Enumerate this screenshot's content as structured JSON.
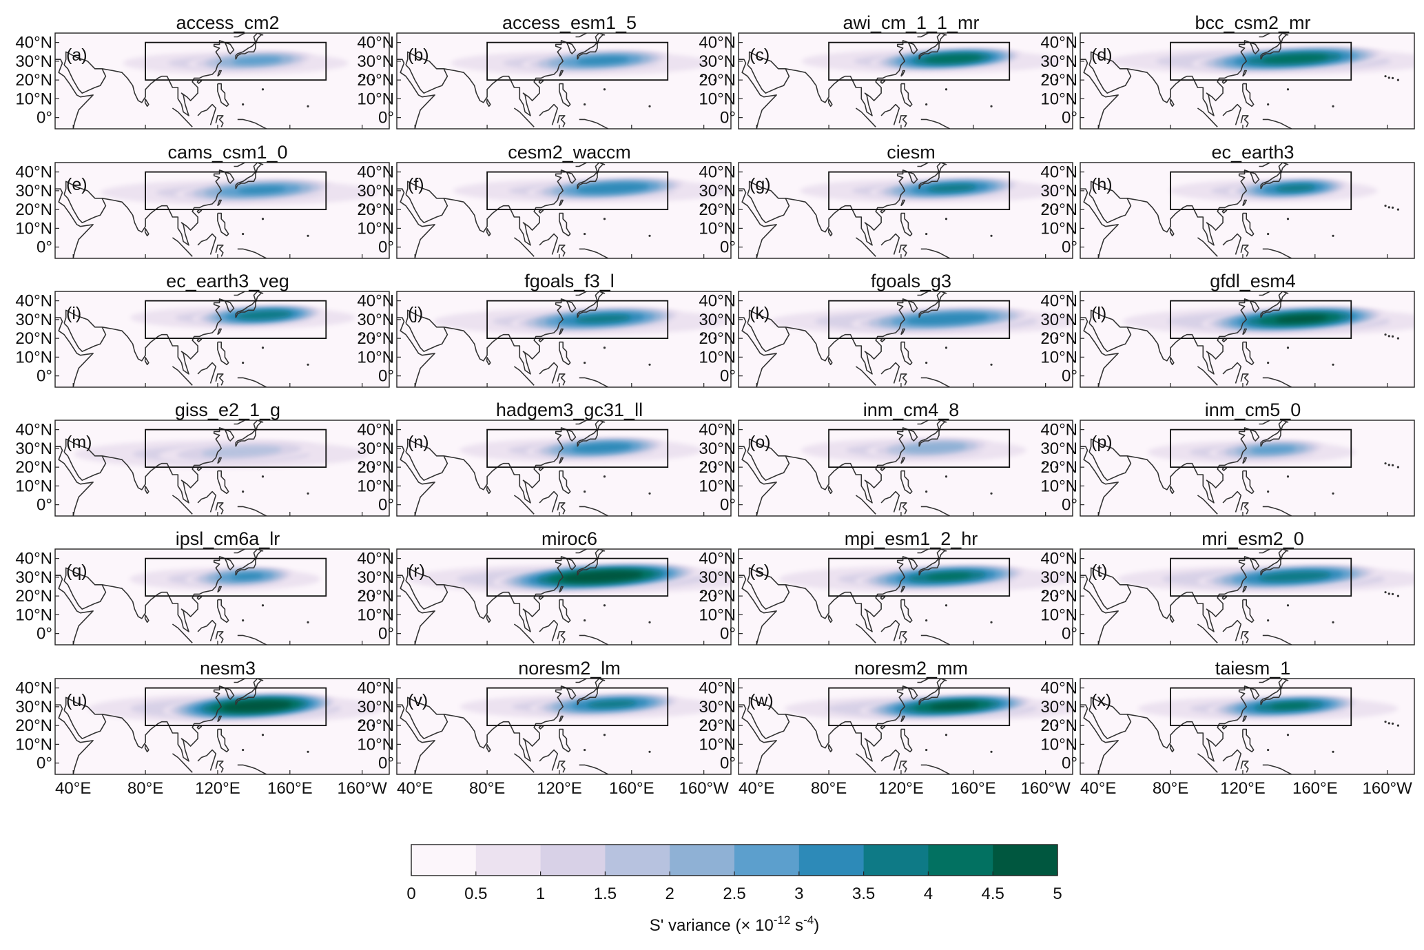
{
  "figure": {
    "panels": [
      {
        "letter": "(a)",
        "title": "access_cm2",
        "jet": {
          "lon": 138,
          "lat": 30,
          "peak": 2.6,
          "lonw": 26,
          "latw": 3.6,
          "weak": 1.0
        }
      },
      {
        "letter": "(b)",
        "title": "access_esm1_5",
        "jet": {
          "lon": 140,
          "lat": 30,
          "peak": 3.1,
          "lonw": 30,
          "latw": 3.8,
          "weak": 1.0
        }
      },
      {
        "letter": "(c)",
        "title": "awi_cm_1_1_mr",
        "jet": {
          "lon": 145,
          "lat": 31,
          "peak": 4.3,
          "lonw": 30,
          "latw": 3.8,
          "weak": 1.2
        }
      },
      {
        "letter": "(d)",
        "title": "bcc_csm2_mr",
        "jet": {
          "lon": 145,
          "lat": 31,
          "peak": 4.2,
          "lonw": 38,
          "latw": 4.2,
          "weak": 1.6
        }
      },
      {
        "letter": "(e)",
        "title": "cams_csm1_0",
        "jet": {
          "lon": 140,
          "lat": 30,
          "peak": 3.0,
          "lonw": 32,
          "latw": 4.0,
          "weak": 1.1
        }
      },
      {
        "letter": "(f)",
        "title": "cesm2_waccm",
        "jet": {
          "lon": 146,
          "lat": 31,
          "peak": 3.4,
          "lonw": 32,
          "latw": 3.8,
          "weak": 1.1
        }
      },
      {
        "letter": "(g)",
        "title": "ciesm",
        "jet": {
          "lon": 144,
          "lat": 31,
          "peak": 3.6,
          "lonw": 30,
          "latw": 3.8,
          "weak": 1.1
        }
      },
      {
        "letter": "(h)",
        "title": "ec_earth3",
        "jet": {
          "lon": 145,
          "lat": 31,
          "peak": 3.6,
          "lonw": 24,
          "latw": 3.6,
          "weak": 1.0
        }
      },
      {
        "letter": "(i)",
        "title": "ec_earth3_veg",
        "jet": {
          "lon": 142,
          "lat": 32,
          "peak": 3.9,
          "lonw": 26,
          "latw": 3.6,
          "weak": 1.0
        }
      },
      {
        "letter": "(j)",
        "title": "fgoals_f3_l",
        "jet": {
          "lon": 140,
          "lat": 30,
          "peak": 3.6,
          "lonw": 34,
          "latw": 4.2,
          "weak": 1.2
        }
      },
      {
        "letter": "(k)",
        "title": "fgoals_g3",
        "jet": {
          "lon": 142,
          "lat": 30,
          "peak": 3.4,
          "lonw": 36,
          "latw": 4.2,
          "weak": 1.3
        }
      },
      {
        "letter": "(l)",
        "title": "gfdl_esm4",
        "jet": {
          "lon": 148,
          "lat": 30,
          "peak": 4.6,
          "lonw": 36,
          "latw": 4.4,
          "weak": 1.3
        }
      },
      {
        "letter": "(m)",
        "title": "giss_e2_1_g",
        "jet": {
          "lon": 130,
          "lat": 28,
          "peak": 1.6,
          "lonw": 34,
          "latw": 4.4,
          "weak": 1.2
        }
      },
      {
        "letter": "(n)",
        "title": "hadgem3_gc31_ll",
        "jet": {
          "lon": 140,
          "lat": 30,
          "peak": 3.3,
          "lonw": 28,
          "latw": 3.8,
          "weak": 1.1
        }
      },
      {
        "letter": "(o)",
        "title": "inm_cm4_8",
        "jet": {
          "lon": 135,
          "lat": 30,
          "peak": 2.3,
          "lonw": 26,
          "latw": 3.8,
          "weak": 0.9
        }
      },
      {
        "letter": "(p)",
        "title": "inm_cm5_0",
        "jet": {
          "lon": 133,
          "lat": 29,
          "peak": 2.6,
          "lonw": 24,
          "latw": 3.6,
          "weak": 1.0
        }
      },
      {
        "letter": "(q)",
        "title": "ipsl_cm6a_lr",
        "jet": {
          "lon": 132,
          "lat": 30,
          "peak": 3.0,
          "lonw": 22,
          "latw": 3.6,
          "weak": 0.9
        }
      },
      {
        "letter": "(r)",
        "title": "miroc6",
        "jet": {
          "lon": 140,
          "lat": 30,
          "peak": 5.0,
          "lonw": 40,
          "latw": 4.6,
          "weak": 1.5
        }
      },
      {
        "letter": "(s)",
        "title": "mpi_esm1_2_hr",
        "jet": {
          "lon": 142,
          "lat": 30,
          "peak": 4.0,
          "lonw": 34,
          "latw": 4.2,
          "weak": 1.2
        }
      },
      {
        "letter": "(t)",
        "title": "mri_esm2_0",
        "jet": {
          "lon": 145,
          "lat": 30,
          "peak": 3.8,
          "lonw": 36,
          "latw": 4.2,
          "weak": 1.3
        }
      },
      {
        "letter": "(u)",
        "title": "nesm3",
        "jet": {
          "lon": 138,
          "lat": 30,
          "peak": 5.0,
          "lonw": 34,
          "latw": 4.6,
          "weak": 1.3
        }
      },
      {
        "letter": "(v)",
        "title": "noresm2_lm",
        "jet": {
          "lon": 145,
          "lat": 31,
          "peak": 3.6,
          "lonw": 30,
          "latw": 3.8,
          "weak": 1.1
        }
      },
      {
        "letter": "(w)",
        "title": "noresm2_mm",
        "jet": {
          "lon": 145,
          "lat": 30,
          "peak": 4.6,
          "lonw": 34,
          "latw": 4.0,
          "weak": 1.3
        }
      },
      {
        "letter": "(x)",
        "title": "taiesm_1",
        "jet": {
          "lon": 142,
          "lat": 30,
          "peak": 4.0,
          "lonw": 30,
          "latw": 3.8,
          "weak": 1.2
        }
      }
    ],
    "lon_ticks": [
      "40°E",
      "80°E",
      "120°E",
      "160°E",
      "160°W"
    ],
    "lat_ticks": [
      "40°N",
      "30°N",
      "20°N",
      "10°N",
      "0°"
    ],
    "domain": {
      "lon": [
        30,
        215
      ],
      "lat": [
        -6,
        45
      ]
    },
    "box": {
      "lon": [
        80,
        180
      ],
      "lat": [
        20,
        40
      ]
    },
    "colorbar": {
      "ticks": [
        "0",
        "0.5",
        "1",
        "1.5",
        "2",
        "2.5",
        "3",
        "3.5",
        "4",
        "4.5",
        "5"
      ],
      "colors": [
        "#fcf6fb",
        "#ece2f0",
        "#d8d1e7",
        "#b7c2df",
        "#8fb1d5",
        "#5c9fcd",
        "#2d8ab8",
        "#0e7a86",
        "#027161",
        "#00573f"
      ],
      "label_main": "S' variance (× 10",
      "label_exp1": "-12",
      "label_mid": " s",
      "label_exp2": "-4",
      "label_end": ")"
    }
  }
}
